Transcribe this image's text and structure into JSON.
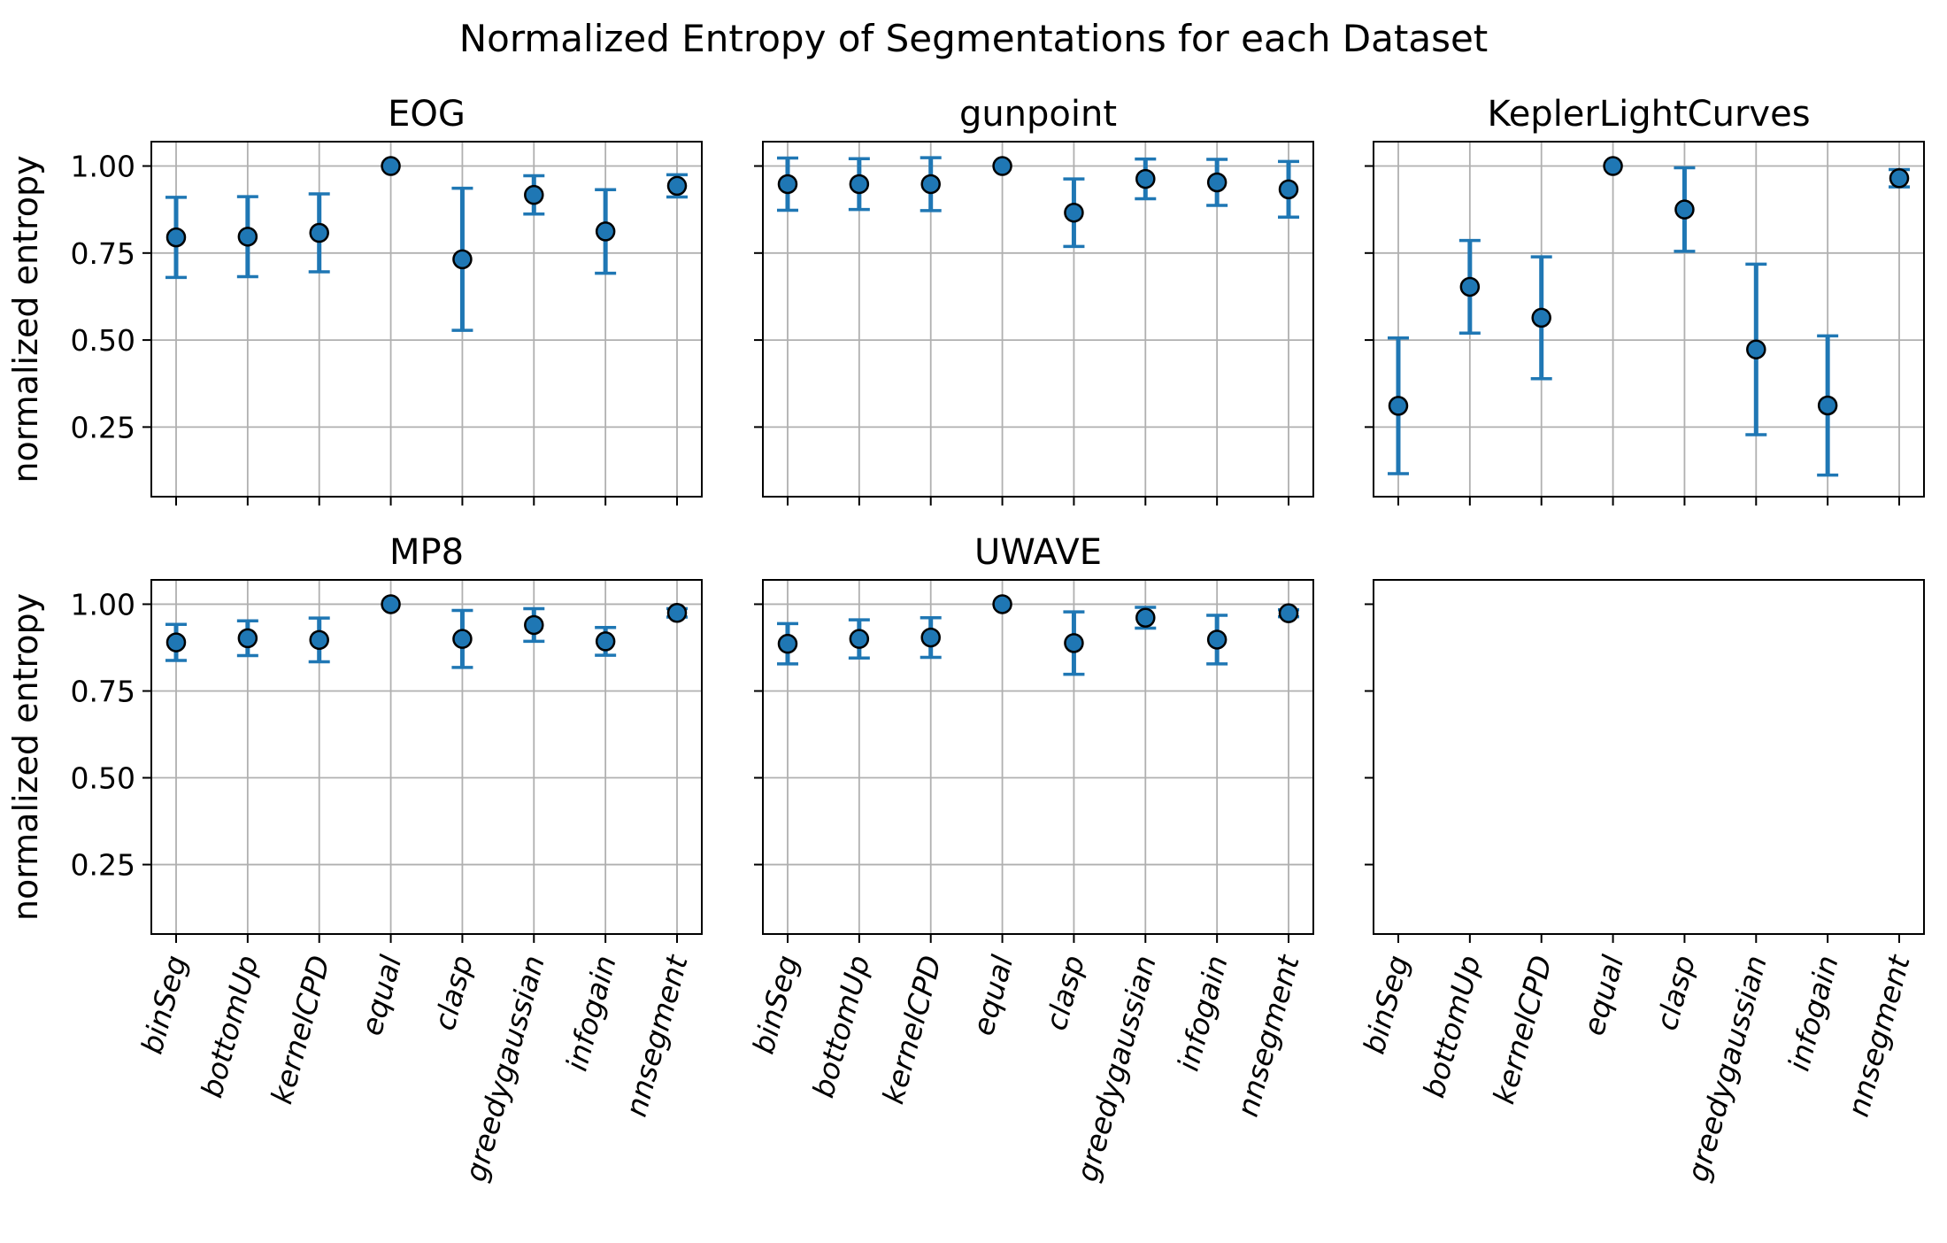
{
  "figure": {
    "title": "Normalized Entropy of Segmentations for each Dataset"
  },
  "chart_data": {
    "type": "scatter",
    "subtype": "errorbar",
    "title": "Normalized Entropy of Segmentations for each Dataset",
    "layout": "2x3 grid, shared x and y axes",
    "ylabel": "normalized entropy",
    "ylim": [
      0.05,
      1.07
    ],
    "yticks": [
      0.25,
      0.5,
      0.75,
      1.0
    ],
    "ytick_labels": [
      "0.25",
      "0.50",
      "0.75",
      "1.00"
    ],
    "grid": true,
    "categories": [
      "binSeg",
      "bottomUp",
      "kernelCPD",
      "equal",
      "clasp",
      "greedygaussian",
      "infogain",
      "nnsegment"
    ],
    "xtick_rotation_deg": 75,
    "colors": {
      "marker_face": "#1f77b4",
      "marker_edge": "#000000",
      "errorbar": "#1f77b4",
      "grid": "#b0b0b0"
    },
    "subplots": [
      {
        "title": "EOG",
        "values": [
          0.795,
          0.797,
          0.808,
          1.0,
          0.732,
          0.917,
          0.812,
          0.943
        ],
        "errors": [
          0.115,
          0.115,
          0.112,
          0.0,
          0.204,
          0.055,
          0.12,
          0.032
        ]
      },
      {
        "title": "gunpoint",
        "values": [
          0.948,
          0.948,
          0.948,
          1.0,
          0.866,
          0.963,
          0.953,
          0.933
        ],
        "errors": [
          0.075,
          0.073,
          0.076,
          0.0,
          0.097,
          0.057,
          0.066,
          0.08
        ]
      },
      {
        "title": "KeplerLightCurves",
        "values": [
          0.311,
          0.653,
          0.564,
          1.0,
          0.875,
          0.473,
          0.312,
          0.965
        ],
        "errors": [
          0.195,
          0.133,
          0.175,
          0.0,
          0.12,
          0.245,
          0.2,
          0.025
        ]
      },
      {
        "title": "MP8",
        "values": [
          0.89,
          0.902,
          0.897,
          1.0,
          0.9,
          0.94,
          0.893,
          0.975
        ],
        "errors": [
          0.052,
          0.05,
          0.063,
          0.0,
          0.082,
          0.047,
          0.04,
          0.012
        ]
      },
      {
        "title": "UWAVE",
        "values": [
          0.886,
          0.9,
          0.904,
          1.0,
          0.888,
          0.961,
          0.898,
          0.974
        ],
        "errors": [
          0.058,
          0.055,
          0.057,
          0.0,
          0.09,
          0.03,
          0.07,
          0.01
        ]
      },
      {
        "title": "",
        "values": [],
        "errors": []
      }
    ]
  }
}
